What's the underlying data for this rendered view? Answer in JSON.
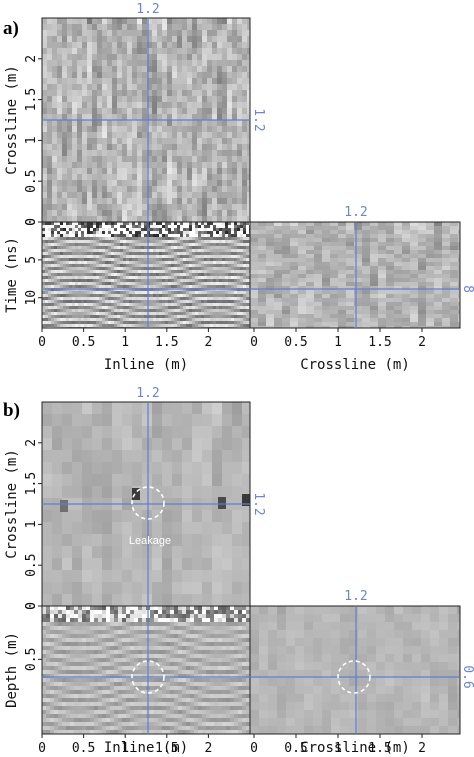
{
  "chart_data": [
    {
      "panel": "a)",
      "type": "heatmap",
      "views": {
        "top": {
          "ylabel": "Crossline (m)",
          "yticks": [
            "0",
            "0.5",
            "1",
            "1.5",
            "2"
          ],
          "yrange": [
            0,
            2.5
          ]
        },
        "front": {
          "xlabel": "Inline (m)",
          "ylabel": "Time (ns)",
          "xticks": [
            "0",
            "0.5",
            "1",
            "1.5",
            "2"
          ],
          "yticks": [
            "0",
            "5",
            "10"
          ],
          "xrange": [
            0,
            2.5
          ],
          "yrange": [
            0,
            14
          ]
        },
        "side": {
          "xlabel": "Crossline (m)",
          "xticks": [
            "0",
            "0.5",
            "1",
            "1.5",
            "2"
          ],
          "xrange": [
            0,
            2.5
          ]
        }
      },
      "cursor": {
        "inline": 1.2,
        "crossline": 1.2,
        "depth": 8,
        "inline_label": "1.2",
        "crossline_label": "1.2",
        "depth_label": "8"
      },
      "colormap": "gray"
    },
    {
      "panel": "b)",
      "type": "heatmap",
      "views": {
        "top": {
          "ylabel": "Crossline (m)",
          "yticks": [
            "0",
            "0.5",
            "1",
            "1.5",
            "2"
          ],
          "yrange": [
            0,
            2.5
          ]
        },
        "front": {
          "xlabel": "Inline (m)",
          "ylabel": "Depth (m)",
          "xticks": [
            "0",
            "0.5",
            "1",
            "1.5",
            "2"
          ],
          "yticks": [
            "0",
            "0.5"
          ],
          "xrange": [
            0,
            2.5
          ],
          "yrange": [
            0,
            1.2
          ]
        },
        "side": {
          "xlabel": "Crossline (m)",
          "xticks": [
            "0",
            "0.5",
            "1",
            "1.5",
            "2"
          ],
          "xrange": [
            0,
            2.5
          ]
        }
      },
      "cursor": {
        "inline": 1.2,
        "crossline": 1.2,
        "depth": 0.6,
        "inline_label": "1.2",
        "crossline_label": "1.2",
        "depth_label": "0.6"
      },
      "annotation": {
        "text": "Leakage"
      },
      "colormap": "gray"
    }
  ]
}
